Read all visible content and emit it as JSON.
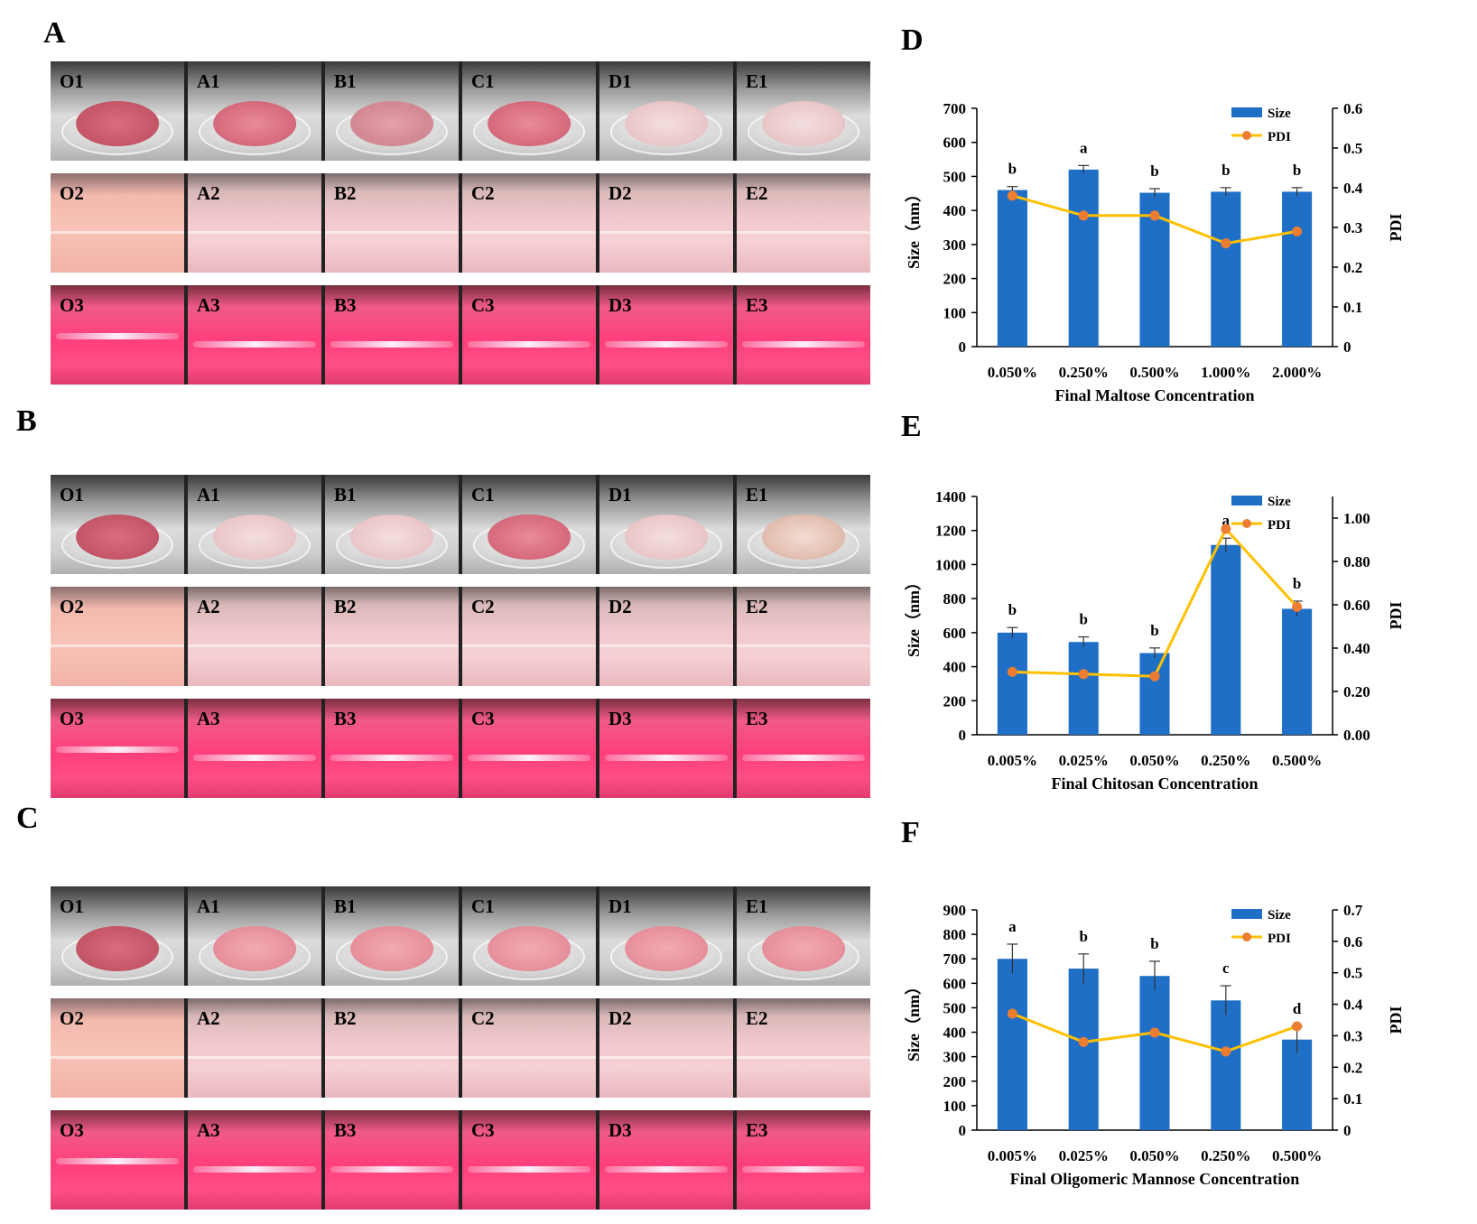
{
  "panels": [
    {
      "letter": "A",
      "rows": [
        {
          "type": "top",
          "labels": [
            "O1",
            "A1",
            "B1",
            "C1",
            "D1",
            "E1"
          ],
          "deposits": [
            "dense",
            "mid",
            "flat",
            "mid",
            "fluff",
            "fluff"
          ]
        },
        {
          "type": "mid",
          "labels": [
            "O2",
            "A2",
            "B2",
            "C2",
            "D2",
            "E2"
          ]
        },
        {
          "type": "bot",
          "labels": [
            "O3",
            "A3",
            "B3",
            "C3",
            "D3",
            "E3"
          ]
        }
      ]
    },
    {
      "letter": "B",
      "rows": [
        {
          "type": "top",
          "labels": [
            "O1",
            "A1",
            "B1",
            "C1",
            "D1",
            "E1"
          ],
          "deposits": [
            "dense",
            "fluff",
            "fluff",
            "mid",
            "fluff",
            "cream"
          ]
        },
        {
          "type": "mid",
          "labels": [
            "O2",
            "A2",
            "B2",
            "C2",
            "D2",
            "E2"
          ]
        },
        {
          "type": "bot",
          "labels": [
            "O3",
            "A3",
            "B3",
            "C3",
            "D3",
            "E3"
          ]
        }
      ]
    },
    {
      "letter": "C",
      "rows": [
        {
          "type": "top",
          "labels": [
            "O1",
            "A1",
            "B1",
            "C1",
            "D1",
            "E1"
          ],
          "deposits": [
            "dense",
            "pink",
            "pink",
            "pink",
            "pink",
            "pink"
          ]
        },
        {
          "type": "mid",
          "labels": [
            "O2",
            "A2",
            "B2",
            "C2",
            "D2",
            "E2"
          ]
        },
        {
          "type": "bot",
          "labels": [
            "O3",
            "A3",
            "B3",
            "C3",
            "D3",
            "E3"
          ]
        }
      ]
    }
  ],
  "colors": {
    "bar": "#1f6fc6",
    "line": "#ffc000",
    "marker": "#ed7d31",
    "axis": "#000000"
  },
  "chart_data": [
    {
      "panel": "D",
      "type": "bar",
      "categories": [
        "0.050%",
        "0.250%",
        "0.500%",
        "1.000%",
        "2.000%"
      ],
      "series": [
        {
          "name": "Size",
          "kind": "bar",
          "axis": "left",
          "values": [
            460,
            520,
            452,
            455,
            455
          ],
          "errors": [
            10,
            12,
            12,
            12,
            12
          ]
        },
        {
          "name": "PDI",
          "kind": "line",
          "axis": "right",
          "values": [
            0.38,
            0.33,
            0.33,
            0.26,
            0.29
          ]
        }
      ],
      "letters": [
        "b",
        "a",
        "b",
        "b",
        "b"
      ],
      "ylabel": "Size（nm）",
      "y2label": "PDI",
      "xlabel": "Final Maltose Concentration",
      "ylim": [
        0,
        700
      ],
      "y_ticks": [
        "0",
        "100",
        "200",
        "300",
        "400",
        "500",
        "600",
        "700"
      ],
      "y2lim": [
        0,
        0.6
      ],
      "y2_ticks": [
        "0",
        "0.1",
        "0.2",
        "0.3",
        "0.4",
        "0.5",
        "0.6"
      ],
      "legend": [
        "Size",
        "PDI"
      ]
    },
    {
      "panel": "E",
      "type": "bar",
      "categories": [
        "0.005%",
        "0.025%",
        "0.050%",
        "0.250%",
        "0.500%"
      ],
      "series": [
        {
          "name": "Size",
          "kind": "bar",
          "axis": "left",
          "values": [
            600,
            545,
            480,
            1115,
            740
          ],
          "errors": [
            30,
            30,
            30,
            40,
            45
          ]
        },
        {
          "name": "PDI",
          "kind": "line",
          "axis": "right",
          "values": [
            0.29,
            0.28,
            0.27,
            0.95,
            0.59
          ]
        }
      ],
      "letters": [
        "b",
        "b",
        "b",
        "a",
        "b"
      ],
      "ylabel": "Size（nm）",
      "y2label": "PDI",
      "xlabel": "Final Chitosan Concentration",
      "ylim": [
        0,
        1400
      ],
      "y_ticks": [
        "0",
        "200",
        "400",
        "600",
        "800",
        "1000",
        "1200",
        "1400"
      ],
      "y2lim": [
        0,
        1.1
      ],
      "y2_ticks": [
        "0.00",
        "0.20",
        "0.40",
        "0.60",
        "0.80",
        "1.00"
      ],
      "legend": [
        "Size",
        "PDI"
      ]
    },
    {
      "panel": "F",
      "type": "bar",
      "categories": [
        "0.005%",
        "0.025%",
        "0.050%",
        "0.250%",
        "0.500%"
      ],
      "series": [
        {
          "name": "Size",
          "kind": "bar",
          "axis": "left",
          "values": [
            700,
            660,
            630,
            530,
            370
          ],
          "errors": [
            60,
            60,
            60,
            60,
            55
          ]
        },
        {
          "name": "PDI",
          "kind": "line",
          "axis": "right",
          "values": [
            0.37,
            0.28,
            0.31,
            0.25,
            0.33
          ]
        }
      ],
      "letters": [
        "a",
        "b",
        "b",
        "c",
        "d"
      ],
      "ylabel": "Size（nm）",
      "y2label": "PDI",
      "xlabel": "Final Oligomeric Mannose Concentration",
      "ylim": [
        0,
        900
      ],
      "y_ticks": [
        "0",
        "100",
        "200",
        "300",
        "400",
        "500",
        "600",
        "700",
        "800",
        "900"
      ],
      "y2lim": [
        0,
        0.7
      ],
      "y2_ticks": [
        "0",
        "0.1",
        "0.2",
        "0.3",
        "0.4",
        "0.5",
        "0.6",
        "0.7"
      ],
      "legend": [
        "Size",
        "PDI"
      ]
    }
  ]
}
